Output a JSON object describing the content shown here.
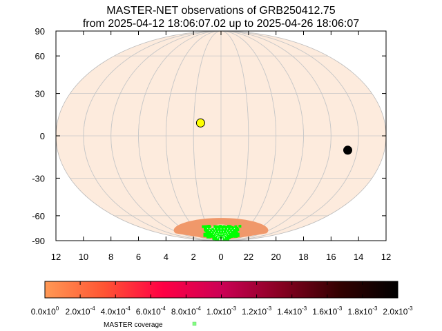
{
  "title_line1": "MASTER-NET observations of GRB250412.75",
  "title_line2": "from 2025-04-12 18:06:07.02 up to 2025-04-26 18:06:07",
  "chart_data": {
    "type": "scatter",
    "projection": "mollweide",
    "y_ticks": [
      "90",
      "60",
      "30",
      "0",
      "-30",
      "-60",
      "-90"
    ],
    "x_ticks": [
      "12",
      "10",
      "8",
      "6",
      "4",
      "2",
      "0",
      "22",
      "20",
      "18",
      "16",
      "14",
      "12"
    ],
    "grid": true,
    "colors": {
      "sky": "#fdebdd",
      "grid": "#c8c8c8",
      "band": "#f0986a",
      "coverage": "#00ff00"
    },
    "points": [
      {
        "ra_h": 1.5,
        "dec": 9,
        "color": "#ffff00"
      },
      {
        "ra_h": 14.7,
        "dec": -10,
        "color": "#000000"
      }
    ],
    "colorbar": {
      "labels": [
        "0.0x10^0",
        "2.0x10^-4",
        "4.0x10^-4",
        "6.0x10^-4",
        "8.0x10^-4",
        "1.0x10^-3",
        "1.2x10^-3",
        "1.4x10^-3",
        "1.6x10^-3",
        "1.8x10^-3",
        "2.0x10^-3"
      ],
      "gradient": [
        "#ff9955",
        "#ff5533",
        "#ff0044",
        "#cc0055",
        "#880022",
        "#330000",
        "#000000"
      ]
    },
    "legend": {
      "label": "MASTER coverage",
      "color": "#80ff80"
    }
  }
}
